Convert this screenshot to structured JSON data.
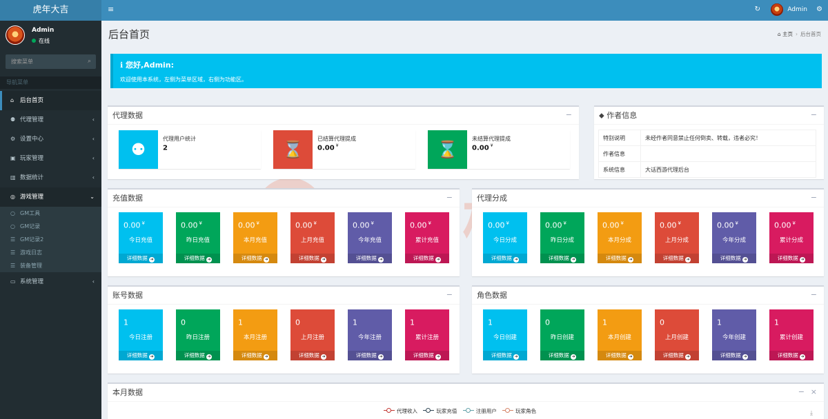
{
  "app": {
    "title": "虎年大吉"
  },
  "topbar": {
    "toggle_icon": "≡",
    "refresh_icon": "↻",
    "user_name": "Admin",
    "gears_icon": "⚙"
  },
  "sidebar": {
    "user_name": "Admin",
    "status": "在线",
    "search_placeholder": "搜索菜单",
    "search_icon": "⌕",
    "header": "导航菜单",
    "items": [
      {
        "icon": "⌂",
        "label": "后台首页",
        "chev": ""
      },
      {
        "icon": "⚉",
        "label": "代理管理",
        "chev": "‹"
      },
      {
        "icon": "⚙",
        "label": "设置中心",
        "chev": "‹"
      },
      {
        "icon": "▣",
        "label": "玩家管理",
        "chev": "‹"
      },
      {
        "icon": "▥",
        "label": "数据统计",
        "chev": "‹"
      },
      {
        "icon": "◎",
        "label": "游戏管理",
        "chev": "⌄"
      },
      {
        "icon": "▭",
        "label": "系统管理",
        "chev": "‹"
      }
    ],
    "sub_items": [
      {
        "icon": "○",
        "label": "GM工具"
      },
      {
        "icon": "○",
        "label": "GM记录"
      },
      {
        "icon": "☰",
        "label": "GM记录2"
      },
      {
        "icon": "☰",
        "label": "游戏日志"
      },
      {
        "icon": "☰",
        "label": "装备管理"
      }
    ]
  },
  "content": {
    "title": "后台首页",
    "breadcrumb": {
      "home_icon": "⌂",
      "home": "主页",
      "sep": "›",
      "current": "后台首页"
    }
  },
  "callout": {
    "title": "ℹ 您好,Admin:",
    "text": "欢迎使用本系统，左侧为菜单区域，右侧为功能区。"
  },
  "boxes": {
    "agent": {
      "title": "代理数据",
      "minimize": "−",
      "items": [
        {
          "icon": "users-icon",
          "glyph": "⚉",
          "label": "代理用户统计",
          "value": "2",
          "unit": "",
          "color": "#00c0ef"
        },
        {
          "icon": "hourglass-icon",
          "glyph": "⌛",
          "label": "已结算代理提成",
          "value": "0.00",
          "unit": "¥",
          "color": "#dd4b39"
        },
        {
          "icon": "hourglass-icon",
          "glyph": "⌛",
          "label": "未结算代理提成",
          "value": "0.00",
          "unit": "¥",
          "color": "#00a65a"
        }
      ]
    },
    "author": {
      "title": "作者信息",
      "tag_icon": "⬥",
      "minimize": "−",
      "rows": [
        {
          "k": "特别说明",
          "v": "未经作者同意禁止任何倒卖、转载，违者必究！"
        },
        {
          "k": "作者信息",
          "v": ""
        },
        {
          "k": "系统信息",
          "v": "大话西游代理后台"
        }
      ]
    },
    "recharge": {
      "title": "充值数据",
      "minimize": "−",
      "footer": "详细数据",
      "arrow": "➜",
      "tiles": [
        {
          "value": "0.00",
          "unit": "¥",
          "label": "今日充值",
          "color": "#00c0ef"
        },
        {
          "value": "0.00",
          "unit": "¥",
          "label": "昨日充值",
          "color": "#00a65a"
        },
        {
          "value": "0.00",
          "unit": "¥",
          "label": "本月充值",
          "color": "#f39c12"
        },
        {
          "value": "0.00",
          "unit": "¥",
          "label": "上月充值",
          "color": "#dd4b39"
        },
        {
          "value": "0.00",
          "unit": "¥",
          "label": "今年充值",
          "color": "#605ca8"
        },
        {
          "value": "0.00",
          "unit": "¥",
          "label": "累计充值",
          "color": "#d81b60"
        }
      ]
    },
    "share": {
      "title": "代理分成",
      "minimize": "−",
      "footer": "详细数据",
      "arrow": "➜",
      "tiles": [
        {
          "value": "0.00",
          "unit": "¥",
          "label": "今日分成",
          "color": "#00c0ef"
        },
        {
          "value": "0.00",
          "unit": "¥",
          "label": "昨日分成",
          "color": "#00a65a"
        },
        {
          "value": "0.00",
          "unit": "¥",
          "label": "本月分成",
          "color": "#f39c12"
        },
        {
          "value": "0.00",
          "unit": "¥",
          "label": "上月分成",
          "color": "#dd4b39"
        },
        {
          "value": "0.00",
          "unit": "¥",
          "label": "今年分成",
          "color": "#605ca8"
        },
        {
          "value": "0.00",
          "unit": "¥",
          "label": "累计分成",
          "color": "#d81b60"
        }
      ]
    },
    "account": {
      "title": "账号数据",
      "minimize": "−",
      "footer": "详细数据",
      "arrow": "➜",
      "tiles": [
        {
          "value": "1",
          "unit": "",
          "label": "今日注册",
          "color": "#00c0ef"
        },
        {
          "value": "0",
          "unit": "",
          "label": "昨日注册",
          "color": "#00a65a"
        },
        {
          "value": "1",
          "unit": "",
          "label": "本月注册",
          "color": "#f39c12"
        },
        {
          "value": "0",
          "unit": "",
          "label": "上月注册",
          "color": "#dd4b39"
        },
        {
          "value": "1",
          "unit": "",
          "label": "今年注册",
          "color": "#605ca8"
        },
        {
          "value": "1",
          "unit": "",
          "label": "累计注册",
          "color": "#d81b60"
        }
      ]
    },
    "role": {
      "title": "角色数据",
      "minimize": "−",
      "footer": "详细数据",
      "arrow": "➜",
      "tiles": [
        {
          "value": "1",
          "unit": "",
          "label": "今日创建",
          "color": "#00c0ef"
        },
        {
          "value": "0",
          "unit": "",
          "label": "昨日创建",
          "color": "#00a65a"
        },
        {
          "value": "1",
          "unit": "",
          "label": "本月创建",
          "color": "#f39c12"
        },
        {
          "value": "0",
          "unit": "",
          "label": "上月创建",
          "color": "#dd4b39"
        },
        {
          "value": "1",
          "unit": "",
          "label": "今年创建",
          "color": "#605ca8"
        },
        {
          "value": "1",
          "unit": "",
          "label": "累计创建",
          "color": "#d81b60"
        }
      ]
    },
    "month": {
      "title": "本月数据",
      "minimize": "−",
      "close": "×",
      "download_icon": "⤓",
      "legend": [
        {
          "label": "代理收入",
          "color": "#c23531"
        },
        {
          "label": "玩家充值",
          "color": "#2f4554"
        },
        {
          "label": "注册用户",
          "color": "#61a0a8"
        },
        {
          "label": "玩家角色",
          "color": "#d48265"
        }
      ]
    }
  },
  "watermark": {
    "text": "一淘模版"
  }
}
